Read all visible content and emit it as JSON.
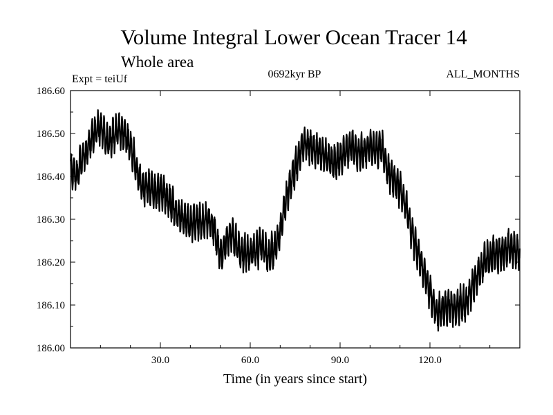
{
  "chart_data": {
    "type": "line",
    "title": "Volume Integral Lower Ocean Tracer 14",
    "subtitle": "Whole area",
    "expt_label": "Expt = teiUf",
    "period_label": "0692kyr BP",
    "months_label": "ALL_MONTHS",
    "xlabel": "Time (in years since start)",
    "ylabel": "",
    "xlim": [
      0,
      150
    ],
    "ylim": [
      186.0,
      186.6
    ],
    "xticks": [
      30,
      60,
      90,
      120
    ],
    "xtick_labels": [
      "30.0",
      "60.0",
      "90.0",
      "120.0"
    ],
    "yticks": [
      186.0,
      186.1,
      186.2,
      186.3,
      186.4,
      186.5,
      186.6
    ],
    "ytick_labels": [
      "186.00",
      "186.10",
      "186.20",
      "186.30",
      "186.40",
      "186.50",
      "186.60"
    ],
    "grid": false,
    "line_color": "#000000",
    "series": [
      {
        "name": "Volume Integral Lower Ocean Tracer 14",
        "x": [
          0,
          2,
          4,
          6,
          8,
          10,
          12,
          14,
          16,
          18,
          20,
          22,
          24,
          26,
          28,
          30,
          32,
          34,
          36,
          38,
          40,
          42,
          44,
          46,
          48,
          50,
          52,
          54,
          56,
          58,
          60,
          62,
          64,
          66,
          68,
          70,
          72,
          74,
          76,
          78,
          80,
          82,
          84,
          86,
          88,
          90,
          92,
          94,
          96,
          98,
          100,
          102,
          104,
          106,
          108,
          110,
          112,
          114,
          116,
          118,
          120,
          122,
          124,
          126,
          128,
          130,
          132,
          134,
          136,
          138,
          140,
          142,
          144,
          146,
          148,
          150
        ],
        "values": [
          186.42,
          186.4,
          186.44,
          186.47,
          186.5,
          186.52,
          186.48,
          186.49,
          186.51,
          186.5,
          186.47,
          186.42,
          186.37,
          186.38,
          186.36,
          186.37,
          186.35,
          186.33,
          186.31,
          186.3,
          186.29,
          186.3,
          186.29,
          186.3,
          186.28,
          186.21,
          186.25,
          186.27,
          186.23,
          186.22,
          186.22,
          186.23,
          186.24,
          186.21,
          186.23,
          186.27,
          186.35,
          186.4,
          186.44,
          186.48,
          186.47,
          186.46,
          186.45,
          186.44,
          186.43,
          186.44,
          186.46,
          186.47,
          186.45,
          186.46,
          186.47,
          186.46,
          186.47,
          186.41,
          186.39,
          186.37,
          186.33,
          186.27,
          186.22,
          186.18,
          186.13,
          186.08,
          186.09,
          186.1,
          186.09,
          186.1,
          186.1,
          186.14,
          186.17,
          186.2,
          186.21,
          186.22,
          186.22,
          186.23,
          186.23,
          186.22
        ],
        "oscillation_amplitude": 0.035
      }
    ]
  }
}
